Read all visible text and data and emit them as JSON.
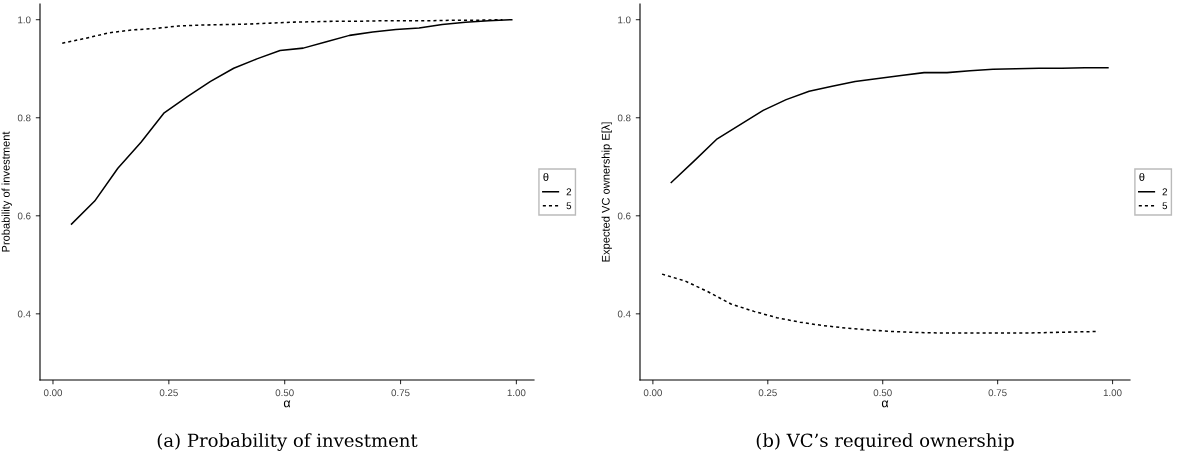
{
  "chart_data": [
    {
      "type": "line",
      "title": "(a) Probability of investment",
      "xlabel": "α",
      "ylabel": "Probability of investment",
      "legend_title": "θ",
      "legend": "right",
      "grid": false,
      "xlim": [
        -0.028,
        1.038
      ],
      "ylim": [
        0.265,
        1.032
      ],
      "xticks": [
        {
          "value": 0,
          "label": "0.00"
        },
        {
          "value": 0.25,
          "label": "0.25"
        },
        {
          "value": 0.5,
          "label": "0.50"
        },
        {
          "value": 0.75,
          "label": "0.75"
        },
        {
          "value": 1,
          "label": "1.00"
        }
      ],
      "yticks": [
        {
          "value": 0.4,
          "label": "0.4"
        },
        {
          "value": 0.6,
          "label": "0.6"
        },
        {
          "value": 0.8,
          "label": "0.8"
        },
        {
          "value": 1,
          "label": "1.0"
        }
      ],
      "series": [
        {
          "name": "2",
          "color": "#000000",
          "line_style": "solid",
          "x": [
            0.04,
            0.09,
            0.14,
            0.19,
            0.24,
            0.29,
            0.34,
            0.39,
            0.44,
            0.49,
            0.54,
            0.59,
            0.64,
            0.69,
            0.74,
            0.79,
            0.84,
            0.89,
            0.94,
            0.99
          ],
          "values": [
            0.583,
            0.63,
            0.697,
            0.75,
            0.81,
            0.843,
            0.874,
            0.901,
            0.92,
            0.937,
            0.942,
            0.955,
            0.968,
            0.975,
            0.98,
            0.983,
            0.99,
            0.995,
            0.998,
            1.0
          ]
        },
        {
          "name": "5",
          "color": "#000000",
          "line_style": "dashed",
          "x": [
            0.02,
            0.07,
            0.12,
            0.17,
            0.22,
            0.27,
            0.32,
            0.37,
            0.42,
            0.47,
            0.52,
            0.57,
            0.62,
            0.67,
            0.72,
            0.77,
            0.82,
            0.87,
            0.92,
            0.97
          ],
          "values": [
            0.952,
            0.962,
            0.973,
            0.979,
            0.982,
            0.987,
            0.989,
            0.99,
            0.991,
            0.993,
            0.995,
            0.996,
            0.997,
            0.997,
            0.998,
            0.998,
            0.998,
            0.999,
            0.999,
            1.0
          ]
        }
      ]
    },
    {
      "type": "line",
      "title": "(b) VC’s required ownership",
      "xlabel": "α",
      "ylabel": "Expected VC ownership E[λ]",
      "legend_title": "θ",
      "legend": "right",
      "grid": false,
      "xlim": [
        -0.028,
        1.038
      ],
      "ylim": [
        0.265,
        1.032
      ],
      "xticks": [
        {
          "value": 0,
          "label": "0.00"
        },
        {
          "value": 0.25,
          "label": "0.25"
        },
        {
          "value": 0.5,
          "label": "0.50"
        },
        {
          "value": 0.75,
          "label": "0.75"
        },
        {
          "value": 1,
          "label": "1.00"
        }
      ],
      "yticks": [
        {
          "value": 0.4,
          "label": "0.4"
        },
        {
          "value": 0.6,
          "label": "0.6"
        },
        {
          "value": 0.8,
          "label": "0.8"
        },
        {
          "value": 1,
          "label": "1.0"
        }
      ],
      "series": [
        {
          "name": "2",
          "color": "#000000",
          "line_style": "solid",
          "x": [
            0.04,
            0.09,
            0.14,
            0.19,
            0.24,
            0.29,
            0.34,
            0.39,
            0.44,
            0.49,
            0.54,
            0.59,
            0.64,
            0.69,
            0.74,
            0.79,
            0.84,
            0.89,
            0.94,
            0.99
          ],
          "values": [
            0.668,
            0.712,
            0.757,
            0.786,
            0.815,
            0.837,
            0.854,
            0.864,
            0.874,
            0.88,
            0.886,
            0.892,
            0.892,
            0.896,
            0.899,
            0.9,
            0.901,
            0.901,
            0.902,
            0.902
          ]
        },
        {
          "name": "5",
          "color": "#000000",
          "line_style": "dashed",
          "x": [
            0.02,
            0.07,
            0.12,
            0.17,
            0.22,
            0.27,
            0.32,
            0.37,
            0.42,
            0.47,
            0.52,
            0.57,
            0.62,
            0.67,
            0.72,
            0.77,
            0.82,
            0.87,
            0.92,
            0.97
          ],
          "values": [
            0.481,
            0.467,
            0.445,
            0.42,
            0.405,
            0.392,
            0.383,
            0.376,
            0.371,
            0.367,
            0.364,
            0.362,
            0.361,
            0.361,
            0.361,
            0.361,
            0.361,
            0.362,
            0.363,
            0.364
          ]
        }
      ]
    }
  ]
}
